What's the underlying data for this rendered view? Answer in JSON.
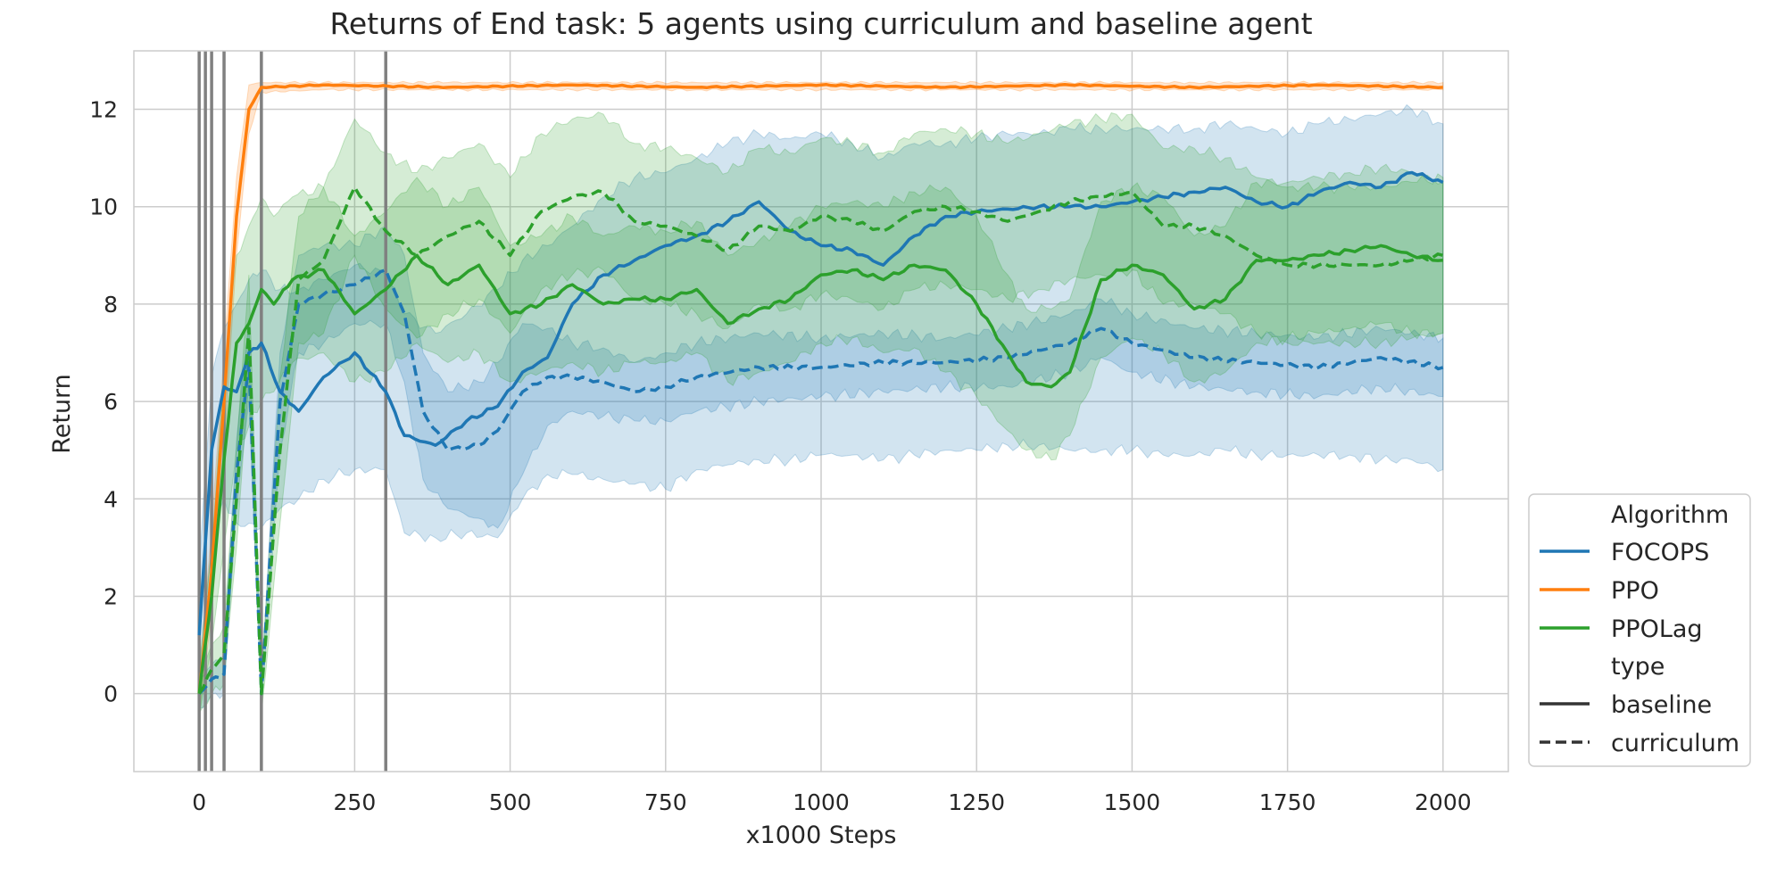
{
  "chart_data": {
    "type": "line",
    "title": "Returns of End task: 5 agents using curriculum and baseline agent",
    "xlabel": "x1000 Steps",
    "ylabel": "Return",
    "xlim": [
      -105,
      2105
    ],
    "ylim": [
      -1.6,
      13.2
    ],
    "x_ticks": [
      0,
      250,
      500,
      750,
      1000,
      1250,
      1500,
      1750,
      2000
    ],
    "y_ticks": [
      0,
      2,
      4,
      6,
      8,
      10,
      12
    ],
    "grid": true,
    "legend_position": "lower-right-outside",
    "curriculum_markers": [
      0,
      10,
      20,
      40,
      100,
      300
    ],
    "legend": {
      "title_algorithm": "Algorithm",
      "title_type": "type",
      "algorithms": [
        {
          "name": "FOCOPS",
          "color": "#1f77b4"
        },
        {
          "name": "PPO",
          "color": "#ff7f0e"
        },
        {
          "name": "PPOLag",
          "color": "#2ca02c"
        }
      ],
      "types": [
        {
          "name": "baseline",
          "dash": "solid"
        },
        {
          "name": "curriculum",
          "dash": "dashed"
        }
      ]
    },
    "series": [
      {
        "algorithm": "PPO",
        "type": "baseline",
        "color": "#ff7f0e",
        "x": [
          0,
          20,
          40,
          60,
          80,
          100,
          200,
          400,
          600,
          800,
          1000,
          1200,
          1400,
          1600,
          1800,
          2000
        ],
        "y": [
          0.0,
          2.5,
          6.0,
          9.8,
          12.0,
          12.45,
          12.5,
          12.45,
          12.5,
          12.45,
          12.5,
          12.45,
          12.5,
          12.45,
          12.5,
          12.45
        ],
        "lower": [
          -0.4,
          1.6,
          5.0,
          9.0,
          11.5,
          12.35,
          12.4,
          12.4,
          12.4,
          12.4,
          12.4,
          12.4,
          12.4,
          12.4,
          12.4,
          12.4
        ],
        "upper": [
          0.4,
          3.4,
          7.0,
          10.6,
          12.5,
          12.55,
          12.55,
          12.55,
          12.55,
          12.55,
          12.55,
          12.55,
          12.55,
          12.55,
          12.55,
          12.55
        ]
      },
      {
        "algorithm": "FOCOPS",
        "type": "baseline",
        "color": "#1f77b4",
        "x": [
          0,
          20,
          40,
          60,
          80,
          100,
          130,
          160,
          200,
          250,
          300,
          330,
          380,
          430,
          480,
          520,
          560,
          600,
          650,
          700,
          750,
          800,
          850,
          900,
          950,
          1000,
          1050,
          1100,
          1150,
          1200,
          1250,
          1300,
          1350,
          1400,
          1450,
          1500,
          1550,
          1600,
          1650,
          1700,
          1750,
          1800,
          1850,
          1900,
          1950,
          2000
        ],
        "y": [
          1.2,
          5.0,
          6.3,
          6.2,
          7.0,
          7.2,
          6.2,
          5.8,
          6.5,
          7.0,
          6.2,
          5.3,
          5.1,
          5.6,
          5.9,
          6.6,
          6.9,
          8.0,
          8.6,
          8.9,
          9.2,
          9.4,
          9.7,
          10.1,
          9.5,
          9.2,
          9.1,
          8.8,
          9.4,
          9.8,
          9.9,
          9.95,
          10.0,
          10.0,
          10.0,
          10.1,
          10.2,
          10.3,
          10.4,
          10.1,
          10.0,
          10.3,
          10.5,
          10.4,
          10.7,
          10.5
        ],
        "lower": [
          0.0,
          3.0,
          4.0,
          3.5,
          3.5,
          3.4,
          3.8,
          4.0,
          4.4,
          4.6,
          4.6,
          3.3,
          3.2,
          3.3,
          3.2,
          4.0,
          4.5,
          4.5,
          4.4,
          4.3,
          4.2,
          4.6,
          4.7,
          4.8,
          4.8,
          4.9,
          4.9,
          4.8,
          4.9,
          5.0,
          5.0,
          5.1,
          5.1,
          5.0,
          5.0,
          5.0,
          4.9,
          4.9,
          5.0,
          4.9,
          4.9,
          4.9,
          4.9,
          4.8,
          4.8,
          4.6
        ],
        "upper": [
          2.5,
          6.5,
          7.5,
          8.0,
          8.5,
          8.7,
          8.3,
          8.3,
          8.5,
          8.8,
          8.6,
          7.8,
          7.4,
          7.8,
          8.3,
          8.9,
          9.2,
          9.6,
          10.2,
          10.6,
          10.7,
          11.0,
          11.3,
          11.5,
          11.4,
          11.5,
          11.3,
          11.0,
          11.3,
          11.3,
          11.4,
          11.5,
          11.5,
          11.6,
          11.6,
          11.6,
          11.6,
          11.6,
          11.7,
          11.6,
          11.5,
          11.7,
          11.8,
          11.9,
          12.0,
          11.7
        ]
      },
      {
        "algorithm": "FOCOPS",
        "type": "curriculum",
        "color": "#1f77b4",
        "x": [
          0,
          20,
          40,
          60,
          80,
          100,
          130,
          160,
          200,
          250,
          300,
          330,
          360,
          400,
          450,
          480,
          520,
          560,
          600,
          650,
          700,
          750,
          800,
          900,
          1000,
          1100,
          1200,
          1300,
          1400,
          1450,
          1500,
          1600,
          1700,
          1800,
          1900,
          2000
        ],
        "y": [
          0.0,
          0.3,
          0.4,
          4.5,
          6.8,
          0.0,
          6.0,
          8.0,
          8.2,
          8.4,
          8.7,
          7.8,
          5.8,
          5.0,
          5.1,
          5.4,
          6.2,
          6.5,
          6.5,
          6.4,
          6.2,
          6.3,
          6.5,
          6.7,
          6.7,
          6.8,
          6.8,
          6.9,
          7.2,
          7.5,
          7.2,
          6.9,
          6.8,
          6.7,
          6.9,
          6.7
        ],
        "lower": [
          -0.3,
          0.0,
          0.0,
          3.8,
          6.0,
          -0.3,
          5.0,
          7.0,
          7.2,
          7.6,
          7.6,
          6.4,
          4.4,
          3.8,
          3.6,
          3.4,
          4.5,
          5.5,
          5.8,
          5.7,
          5.6,
          5.6,
          5.8,
          6.0,
          6.1,
          6.2,
          6.3,
          6.3,
          6.6,
          6.9,
          6.6,
          6.3,
          6.2,
          6.1,
          6.3,
          6.1
        ],
        "upper": [
          0.3,
          0.6,
          0.8,
          5.2,
          7.6,
          0.3,
          7.0,
          9.0,
          9.2,
          9.2,
          9.6,
          9.0,
          7.0,
          6.2,
          6.4,
          6.8,
          7.6,
          7.5,
          7.2,
          7.1,
          6.8,
          7.0,
          7.2,
          7.4,
          7.3,
          7.4,
          7.3,
          7.5,
          7.8,
          8.1,
          7.8,
          7.5,
          7.4,
          7.3,
          7.5,
          7.3
        ]
      },
      {
        "algorithm": "PPOLag",
        "type": "baseline",
        "color": "#2ca02c",
        "x": [
          0,
          20,
          40,
          60,
          80,
          100,
          120,
          150,
          200,
          250,
          300,
          350,
          400,
          450,
          500,
          550,
          600,
          650,
          700,
          750,
          800,
          850,
          900,
          950,
          1000,
          1050,
          1100,
          1150,
          1200,
          1250,
          1300,
          1330,
          1370,
          1400,
          1450,
          1500,
          1550,
          1600,
          1650,
          1700,
          1750,
          1800,
          1850,
          1900,
          1950,
          2000
        ],
        "y": [
          0.0,
          2.0,
          4.8,
          7.2,
          7.6,
          8.3,
          8.0,
          8.5,
          8.7,
          7.8,
          8.3,
          9.0,
          8.4,
          8.8,
          7.8,
          8.0,
          8.4,
          8.0,
          8.1,
          8.1,
          8.3,
          7.6,
          7.9,
          8.1,
          8.6,
          8.7,
          8.5,
          8.8,
          8.7,
          8.0,
          7.0,
          6.4,
          6.3,
          6.6,
          8.5,
          8.8,
          8.6,
          7.9,
          8.1,
          8.9,
          8.9,
          9.0,
          9.1,
          9.2,
          9.0,
          8.9
        ],
        "lower": [
          -0.5,
          1.0,
          3.0,
          5.0,
          5.5,
          6.0,
          6.2,
          6.8,
          7.0,
          6.4,
          6.6,
          7.2,
          6.8,
          7.0,
          6.4,
          6.6,
          6.8,
          6.6,
          6.8,
          6.8,
          7.0,
          6.4,
          6.6,
          6.8,
          7.2,
          7.3,
          7.0,
          7.1,
          6.6,
          6.1,
          5.4,
          5.0,
          4.8,
          5.3,
          6.9,
          7.3,
          7.0,
          6.4,
          6.6,
          7.2,
          7.3,
          7.4,
          7.5,
          7.6,
          7.4,
          7.4
        ],
        "upper": [
          0.5,
          3.0,
          6.5,
          9.0,
          9.6,
          10.2,
          9.8,
          10.2,
          10.4,
          9.4,
          9.9,
          10.6,
          10.0,
          10.4,
          9.2,
          9.4,
          9.8,
          9.4,
          9.6,
          9.5,
          9.7,
          9.0,
          9.3,
          9.6,
          10.0,
          10.1,
          10.0,
          10.3,
          10.4,
          9.8,
          8.6,
          7.9,
          7.9,
          8.1,
          10.1,
          10.4,
          10.2,
          9.4,
          9.6,
          10.5,
          10.5,
          10.6,
          10.7,
          10.8,
          10.7,
          10.5
        ]
      },
      {
        "algorithm": "PPOLag",
        "type": "curriculum",
        "color": "#2ca02c",
        "x": [
          0,
          20,
          40,
          60,
          80,
          100,
          130,
          160,
          200,
          250,
          300,
          350,
          400,
          450,
          500,
          550,
          600,
          650,
          700,
          750,
          800,
          850,
          900,
          950,
          1000,
          1050,
          1100,
          1150,
          1200,
          1250,
          1300,
          1350,
          1400,
          1450,
          1500,
          1550,
          1600,
          1650,
          1700,
          1750,
          1800,
          1850,
          1900,
          1950,
          2000
        ],
        "y": [
          0.0,
          0.5,
          0.8,
          4.0,
          7.5,
          0.0,
          5.0,
          8.5,
          8.9,
          10.4,
          9.5,
          9.0,
          9.4,
          9.7,
          9.0,
          9.9,
          10.2,
          10.3,
          9.7,
          9.6,
          9.4,
          9.1,
          9.6,
          9.5,
          9.8,
          9.7,
          9.5,
          9.9,
          10.0,
          9.9,
          9.7,
          9.9,
          10.1,
          10.2,
          10.3,
          9.6,
          9.6,
          9.4,
          9.0,
          8.8,
          8.8,
          8.8,
          8.8,
          8.9,
          9.0
        ],
        "lower": [
          -0.4,
          0.0,
          0.2,
          3.0,
          6.4,
          -0.4,
          3.5,
          7.2,
          7.4,
          9.0,
          7.9,
          7.3,
          7.8,
          8.1,
          7.4,
          8.3,
          8.6,
          8.7,
          8.1,
          8.0,
          7.8,
          7.5,
          8.0,
          7.9,
          8.2,
          8.1,
          7.9,
          8.3,
          8.4,
          8.3,
          8.1,
          8.3,
          8.5,
          8.6,
          8.7,
          8.0,
          8.0,
          7.8,
          7.4,
          7.2,
          7.2,
          7.2,
          7.2,
          7.3,
          7.4
        ],
        "upper": [
          0.4,
          1.0,
          1.4,
          5.0,
          8.6,
          0.4,
          6.5,
          9.8,
          10.4,
          11.8,
          11.1,
          10.7,
          11.0,
          11.3,
          10.6,
          11.5,
          11.8,
          11.9,
          11.3,
          11.2,
          11.0,
          10.7,
          11.2,
          11.1,
          11.4,
          11.3,
          11.1,
          11.5,
          11.6,
          11.5,
          11.3,
          11.5,
          11.7,
          11.8,
          11.9,
          11.2,
          11.2,
          11.0,
          10.6,
          10.4,
          10.4,
          10.4,
          10.4,
          10.5,
          10.6
        ]
      }
    ]
  }
}
